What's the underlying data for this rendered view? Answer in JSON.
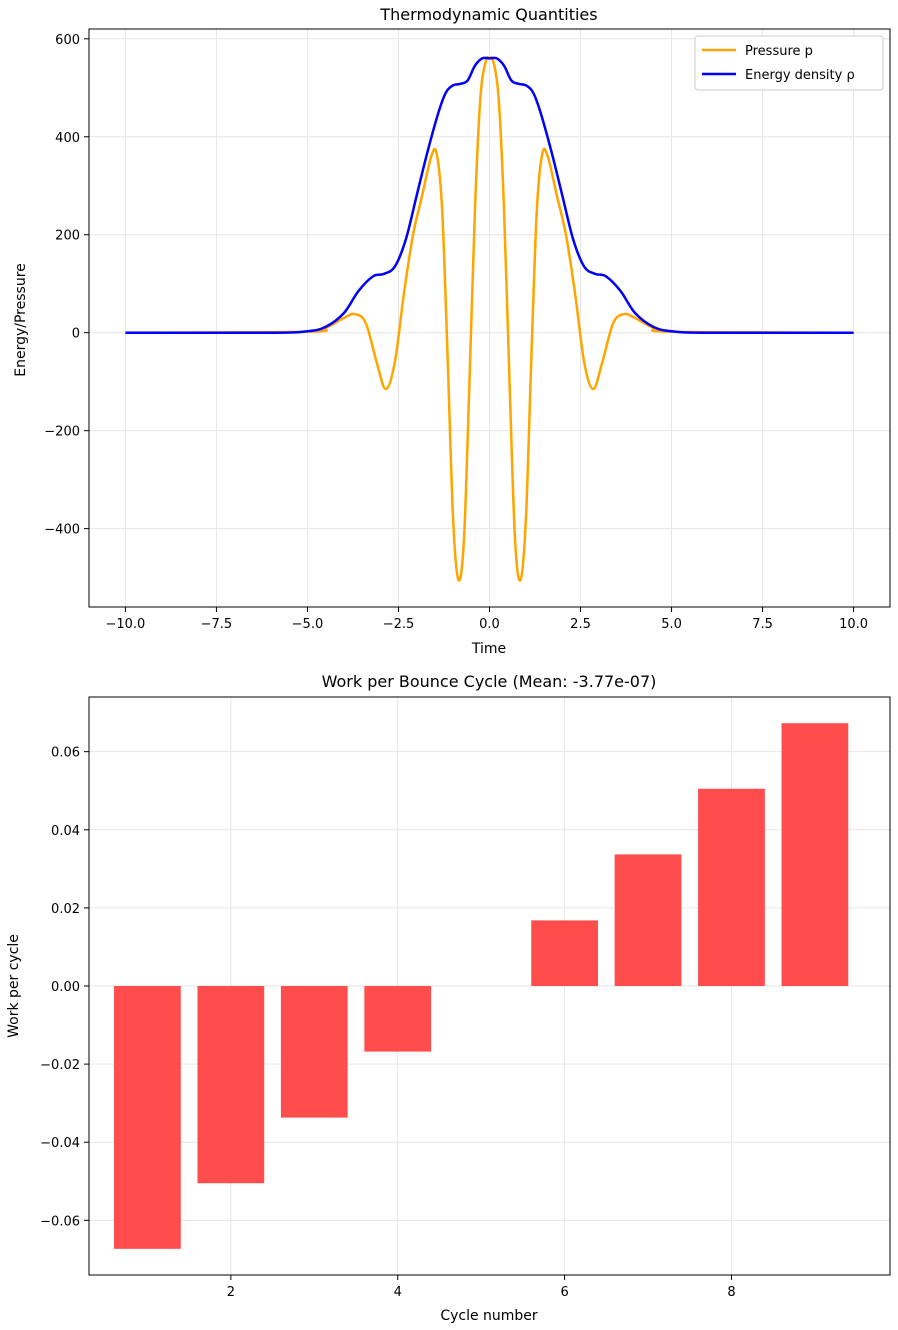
{
  "chart_data": [
    {
      "type": "line",
      "title": "Thermodynamic Quantities",
      "xlabel": "Time",
      "ylabel": "Energy/Pressure",
      "xlim": [
        -11.0,
        11.0
      ],
      "ylim": [
        -560,
        620
      ],
      "xticks": [
        -10,
        -7.5,
        -5,
        -2.5,
        0,
        2.5,
        5,
        7.5,
        10
      ],
      "xtick_labels": [
        "−10.0",
        "−7.5",
        "−5.0",
        "−2.5",
        "0.0",
        "2.5",
        "5.0",
        "7.5",
        "10.0"
      ],
      "yticks": [
        -400,
        -200,
        0,
        200,
        400,
        600
      ],
      "ytick_labels": [
        "−400",
        "−200",
        "0",
        "200",
        "400",
        "600"
      ],
      "grid": true,
      "legend_position": "top-right",
      "series": [
        {
          "name": "Pressure p",
          "color": "#ffa500",
          "x": [
            -10,
            -5,
            -4.5,
            -4.0,
            -3.7,
            -3.4,
            -3.1,
            -2.85,
            -2.6,
            -2.35,
            -2.1,
            -1.85,
            -1.6,
            -1.45,
            -1.3,
            -1.15,
            -1.0,
            -0.85,
            -0.7,
            -0.55,
            -0.4,
            -0.25,
            -0.1,
            0.0,
            0.1,
            0.25,
            0.4,
            0.55,
            0.7,
            0.85,
            1.0,
            1.15,
            1.3,
            1.45,
            1.6,
            1.85,
            2.1,
            2.35,
            2.6,
            2.85,
            3.1,
            3.4,
            3.7,
            4.0,
            4.5,
            5,
            10
          ],
          "y": [
            0,
            2,
            10,
            30,
            38,
            20,
            -60,
            -115,
            -60,
            80,
            200,
            280,
            360,
            365,
            250,
            -50,
            -380,
            -505,
            -420,
            -100,
            250,
            480,
            555,
            560,
            555,
            480,
            250,
            -100,
            -420,
            -505,
            -380,
            -50,
            250,
            365,
            360,
            280,
            200,
            80,
            -60,
            -115,
            -60,
            20,
            38,
            30,
            10,
            2,
            0
          ]
        },
        {
          "name": "Energy density ρ",
          "color": "#0000ff",
          "x": [
            -10,
            -6.0,
            -5.0,
            -4.5,
            -4.0,
            -3.6,
            -3.2,
            -2.9,
            -2.6,
            -2.3,
            -2.0,
            -1.7,
            -1.4,
            -1.2,
            -1.0,
            -0.8,
            -0.6,
            -0.4,
            -0.2,
            0.0,
            0.2,
            0.4,
            0.6,
            0.8,
            1.0,
            1.2,
            1.4,
            1.7,
            2.0,
            2.3,
            2.6,
            2.9,
            3.2,
            3.6,
            4.0,
            4.5,
            5.0,
            6.0,
            10
          ],
          "y": [
            0,
            0,
            3,
            12,
            40,
            85,
            115,
            120,
            135,
            190,
            280,
            370,
            450,
            490,
            505,
            508,
            515,
            545,
            560,
            560,
            560,
            545,
            515,
            508,
            505,
            490,
            450,
            370,
            280,
            190,
            135,
            120,
            115,
            85,
            40,
            12,
            3,
            0,
            0
          ]
        }
      ]
    },
    {
      "type": "bar",
      "title": "Work per Bounce Cycle (Mean: -3.77e-07)",
      "xlabel": "Cycle number",
      "ylabel": "Work per cycle",
      "xlim": [
        0.3,
        9.9
      ],
      "ylim": [
        -0.074,
        0.074
      ],
      "xticks": [
        2,
        4,
        6,
        8
      ],
      "xtick_labels": [
        "2",
        "4",
        "6",
        "8"
      ],
      "yticks": [
        -0.06,
        -0.04,
        -0.02,
        0.0,
        0.02,
        0.04,
        0.06
      ],
      "ytick_labels": [
        "−0.06",
        "−0.04",
        "−0.02",
        "0.00",
        "0.02",
        "0.04",
        "0.06"
      ],
      "grid": true,
      "bar_color": "#ff4d4d",
      "categories": [
        1,
        2,
        3,
        4,
        5,
        6,
        7,
        8,
        9
      ],
      "values": [
        -0.0673,
        -0.0505,
        -0.0337,
        -0.0168,
        0.0,
        0.0168,
        0.0337,
        0.0505,
        0.0673
      ]
    }
  ]
}
